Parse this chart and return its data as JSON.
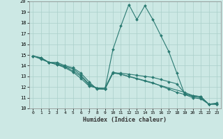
{
  "xlabel": "Humidex (Indice chaleur)",
  "xlim": [
    -0.5,
    23.5
  ],
  "ylim": [
    10,
    20
  ],
  "xticks": [
    0,
    1,
    2,
    3,
    4,
    5,
    6,
    7,
    8,
    9,
    10,
    11,
    12,
    13,
    14,
    15,
    16,
    17,
    18,
    19,
    20,
    21,
    22,
    23
  ],
  "yticks": [
    10,
    11,
    12,
    13,
    14,
    15,
    16,
    17,
    18,
    19,
    20
  ],
  "bg_color": "#cce8e4",
  "grid_color": "#aacfca",
  "line_color": "#2a7a72",
  "lines": [
    {
      "x": [
        0,
        1,
        2,
        3,
        4,
        5,
        6,
        7,
        8,
        9,
        10,
        11,
        12,
        13,
        14,
        15,
        16,
        17,
        18,
        19,
        20,
        21,
        22,
        23
      ],
      "y": [
        14.9,
        14.75,
        14.3,
        14.3,
        14.0,
        13.8,
        13.3,
        12.5,
        11.8,
        11.8,
        15.5,
        17.7,
        19.7,
        18.3,
        19.6,
        18.3,
        16.8,
        15.3,
        13.3,
        11.3,
        11.2,
        11.1,
        10.4,
        10.4
      ]
    },
    {
      "x": [
        0,
        1,
        2,
        3,
        4,
        5,
        6,
        7,
        8,
        9,
        10,
        19,
        20,
        21,
        22,
        23
      ],
      "y": [
        14.9,
        14.7,
        14.3,
        14.2,
        13.9,
        13.7,
        13.1,
        12.3,
        11.9,
        11.9,
        13.4,
        11.5,
        11.2,
        11.1,
        10.4,
        10.5
      ]
    },
    {
      "x": [
        0,
        1,
        2,
        3,
        4,
        5,
        6,
        7,
        8,
        9,
        10,
        11,
        12,
        13,
        14,
        15,
        16,
        17,
        18,
        19,
        20,
        21,
        22,
        23
      ],
      "y": [
        14.9,
        14.7,
        14.3,
        14.1,
        13.9,
        13.5,
        13.0,
        12.2,
        11.9,
        11.8,
        13.3,
        13.3,
        13.2,
        13.1,
        13.0,
        12.9,
        12.7,
        12.5,
        12.3,
        11.4,
        11.1,
        11.0,
        10.4,
        10.4
      ]
    },
    {
      "x": [
        0,
        1,
        2,
        3,
        4,
        5,
        6,
        7,
        8,
        9,
        10,
        11,
        12,
        13,
        14,
        15,
        16,
        17,
        18,
        19,
        20,
        21,
        22,
        23
      ],
      "y": [
        14.9,
        14.6,
        14.3,
        14.1,
        13.8,
        13.4,
        12.8,
        12.1,
        11.9,
        11.8,
        13.3,
        13.2,
        13.0,
        12.8,
        12.6,
        12.4,
        12.1,
        11.8,
        11.5,
        11.3,
        11.0,
        10.9,
        10.4,
        10.4
      ]
    }
  ]
}
